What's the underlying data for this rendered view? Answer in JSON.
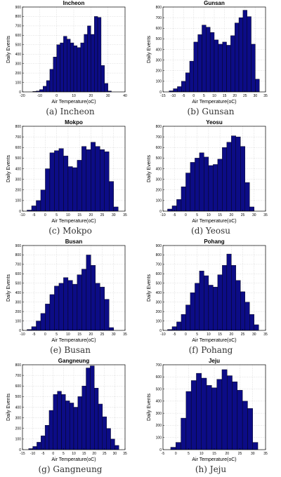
{
  "colors": {
    "bar_fill": "#0c0c86",
    "bar_stroke": "#000000",
    "grid": "#c8c8c8",
    "axis": "#000000"
  },
  "chart_data": [
    {
      "type": "bar",
      "title": "Incheon",
      "caption": "(a) Incheon",
      "xlabel": "Air Temperature(oC)",
      "ylabel": "Daily Events",
      "xlim": [
        -20,
        40
      ],
      "ylim": [
        0,
        900
      ],
      "bin_width": 2,
      "xticks": [
        -20,
        -10,
        0,
        10,
        20,
        30,
        40
      ],
      "yticks": [
        0,
        100,
        200,
        300,
        400,
        500,
        600,
        700,
        800,
        900
      ],
      "x": [
        -13,
        -11,
        -9,
        -7,
        -5,
        -3,
        -1,
        1,
        3,
        5,
        7,
        9,
        11,
        13,
        15,
        17,
        19,
        21,
        23,
        25,
        27,
        29,
        31
      ],
      "values": [
        5,
        10,
        25,
        60,
        120,
        240,
        370,
        500,
        520,
        590,
        560,
        520,
        490,
        470,
        520,
        610,
        700,
        610,
        800,
        790,
        280,
        90,
        10
      ]
    },
    {
      "type": "bar",
      "title": "Gunsan",
      "caption": "(b) Gunsan",
      "xlabel": "Air Temperature(oC)",
      "ylabel": "Daily Events",
      "xlim": [
        -15,
        35
      ],
      "ylim": [
        0,
        800
      ],
      "bin_width": 2,
      "xticks": [
        -15,
        -10,
        -5,
        0,
        5,
        10,
        15,
        20,
        25,
        30,
        35
      ],
      "yticks": [
        0,
        100,
        200,
        300,
        400,
        500,
        600,
        700,
        800
      ],
      "x": [
        -11,
        -9,
        -7,
        -5,
        -3,
        -1,
        1,
        3,
        5,
        7,
        9,
        11,
        13,
        15,
        17,
        19,
        21,
        23,
        25,
        27,
        29,
        31
      ],
      "values": [
        10,
        30,
        50,
        100,
        180,
        290,
        470,
        540,
        630,
        610,
        560,
        490,
        450,
        470,
        440,
        530,
        650,
        700,
        770,
        710,
        450,
        120
      ]
    },
    {
      "type": "bar",
      "title": "Mokpo",
      "caption": "(c) Mokpo",
      "xlabel": "Air Temperature(oC)",
      "ylabel": "Daily Events",
      "xlim": [
        -10,
        35
      ],
      "ylim": [
        0,
        800
      ],
      "bin_width": 2,
      "xticks": [
        -10,
        -5,
        0,
        5,
        10,
        15,
        20,
        25,
        30,
        35
      ],
      "yticks": [
        0,
        100,
        200,
        300,
        400,
        500,
        600,
        700,
        800
      ],
      "x": [
        -7,
        -5,
        -3,
        -1,
        1,
        3,
        5,
        7,
        9,
        11,
        13,
        15,
        17,
        19,
        21,
        23,
        25,
        27,
        29,
        31
      ],
      "values": [
        10,
        50,
        100,
        200,
        400,
        550,
        570,
        590,
        520,
        420,
        410,
        480,
        610,
        580,
        650,
        610,
        580,
        560,
        280,
        40
      ]
    },
    {
      "type": "bar",
      "title": "Yeosu",
      "caption": "(d) Yeosu",
      "xlabel": "Air Temperature(oC)",
      "ylabel": "Daily Events",
      "xlim": [
        -10,
        35
      ],
      "ylim": [
        0,
        800
      ],
      "bin_width": 2,
      "xticks": [
        -10,
        -5,
        0,
        5,
        10,
        15,
        20,
        25,
        30,
        35
      ],
      "yticks": [
        0,
        100,
        200,
        300,
        400,
        500,
        600,
        700,
        800
      ],
      "x": [
        -7,
        -5,
        -3,
        -1,
        1,
        3,
        5,
        7,
        9,
        11,
        13,
        15,
        17,
        19,
        21,
        23,
        25,
        27,
        29
      ],
      "values": [
        20,
        50,
        110,
        230,
        360,
        460,
        500,
        550,
        510,
        430,
        440,
        490,
        600,
        650,
        710,
        700,
        610,
        270,
        40
      ]
    },
    {
      "type": "bar",
      "title": "Busan",
      "caption": "(e) Busan",
      "xlabel": "Air Temperature(oC)",
      "ylabel": "Daily Events",
      "xlim": [
        -10,
        35
      ],
      "ylim": [
        0,
        900
      ],
      "bin_width": 2,
      "xticks": [
        -10,
        -5,
        0,
        5,
        10,
        15,
        20,
        25,
        30,
        35
      ],
      "yticks": [
        0,
        100,
        200,
        300,
        400,
        500,
        600,
        700,
        800,
        900
      ],
      "x": [
        -7,
        -5,
        -3,
        -1,
        1,
        3,
        5,
        7,
        9,
        11,
        13,
        15,
        17,
        19,
        21,
        23,
        25,
        27,
        29
      ],
      "values": [
        10,
        40,
        100,
        180,
        280,
        380,
        470,
        500,
        560,
        530,
        490,
        590,
        650,
        800,
        690,
        500,
        460,
        330,
        30
      ]
    },
    {
      "type": "bar",
      "title": "Pohang",
      "caption": "(f) Pohang",
      "xlabel": "Air Temperature(oC)",
      "ylabel": "Daily Events",
      "xlim": [
        -10,
        35
      ],
      "ylim": [
        0,
        900
      ],
      "bin_width": 2,
      "xticks": [
        -10,
        -5,
        0,
        5,
        10,
        15,
        20,
        25,
        30,
        35
      ],
      "yticks": [
        0,
        100,
        200,
        300,
        400,
        500,
        600,
        700,
        800,
        900
      ],
      "x": [
        -7,
        -5,
        -3,
        -1,
        1,
        3,
        5,
        7,
        9,
        11,
        13,
        15,
        17,
        19,
        21,
        23,
        25,
        27,
        29,
        31
      ],
      "values": [
        10,
        40,
        90,
        170,
        270,
        400,
        500,
        630,
        580,
        480,
        460,
        590,
        690,
        810,
        690,
        530,
        410,
        300,
        170,
        60
      ]
    },
    {
      "type": "bar",
      "title": "Gangneung",
      "caption": "(g) Gangneung",
      "xlabel": "Air Temperature(oC)",
      "ylabel": "Daily Events",
      "xlim": [
        -15,
        35
      ],
      "ylim": [
        0,
        800
      ],
      "bin_width": 2,
      "xticks": [
        -15,
        -10,
        -5,
        0,
        5,
        10,
        15,
        20,
        25,
        30,
        35
      ],
      "yticks": [
        0,
        100,
        200,
        300,
        400,
        500,
        600,
        700,
        800
      ],
      "x": [
        -11,
        -9,
        -7,
        -5,
        -3,
        -1,
        1,
        3,
        5,
        7,
        9,
        11,
        13,
        15,
        17,
        19,
        21,
        23,
        25,
        27,
        29,
        31
      ],
      "values": [
        10,
        30,
        70,
        130,
        230,
        370,
        520,
        550,
        520,
        460,
        440,
        400,
        500,
        600,
        770,
        790,
        580,
        430,
        310,
        200,
        100,
        40
      ]
    },
    {
      "type": "bar",
      "title": "Jeju",
      "caption": "(h) Jeju",
      "xlabel": "Air Temperature(oC)",
      "ylabel": "Daily Events",
      "xlim": [
        -5,
        35
      ],
      "ylim": [
        0,
        700
      ],
      "bin_width": 2,
      "xticks": [
        -5,
        0,
        5,
        10,
        15,
        20,
        25,
        30,
        35
      ],
      "yticks": [
        0,
        100,
        200,
        300,
        400,
        500,
        600,
        700
      ],
      "x": [
        -1,
        1,
        3,
        5,
        7,
        9,
        11,
        13,
        15,
        17,
        19,
        21,
        23,
        25,
        27,
        29,
        31
      ],
      "values": [
        20,
        60,
        260,
        480,
        570,
        630,
        590,
        530,
        510,
        580,
        660,
        610,
        560,
        490,
        400,
        340,
        60
      ]
    }
  ]
}
